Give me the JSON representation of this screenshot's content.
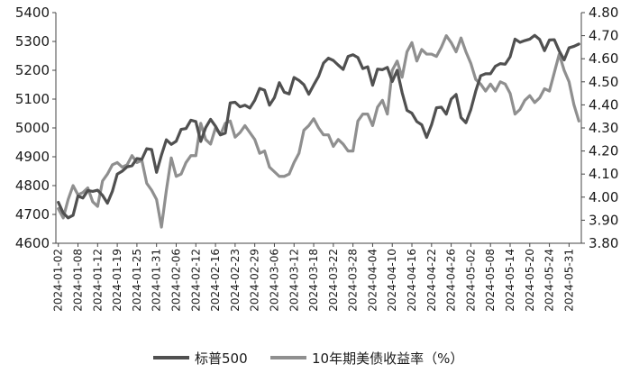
{
  "chart_data": {
    "type": "line",
    "x": [
      "2024-01-02",
      "2024-01-03",
      "2024-01-04",
      "2024-01-05",
      "2024-01-08",
      "2024-01-09",
      "2024-01-10",
      "2024-01-11",
      "2024-01-12",
      "2024-01-16",
      "2024-01-17",
      "2024-01-18",
      "2024-01-19",
      "2024-01-22",
      "2024-01-23",
      "2024-01-24",
      "2024-01-25",
      "2024-01-26",
      "2024-01-29",
      "2024-01-30",
      "2024-01-31",
      "2024-02-01",
      "2024-02-02",
      "2024-02-05",
      "2024-02-06",
      "2024-02-07",
      "2024-02-08",
      "2024-02-09",
      "2024-02-12",
      "2024-02-13",
      "2024-02-14",
      "2024-02-15",
      "2024-02-16",
      "2024-02-20",
      "2024-02-21",
      "2024-02-22",
      "2024-02-23",
      "2024-02-26",
      "2024-02-27",
      "2024-02-28",
      "2024-02-29",
      "2024-03-01",
      "2024-03-04",
      "2024-03-05",
      "2024-03-06",
      "2024-03-07",
      "2024-03-08",
      "2024-03-11",
      "2024-03-12",
      "2024-03-13",
      "2024-03-14",
      "2024-03-15",
      "2024-03-18",
      "2024-03-19",
      "2024-03-20",
      "2024-03-21",
      "2024-03-22",
      "2024-03-25",
      "2024-03-26",
      "2024-03-27",
      "2024-03-28",
      "2024-04-01",
      "2024-04-02",
      "2024-04-03",
      "2024-04-04",
      "2024-04-05",
      "2024-04-08",
      "2024-04-09",
      "2024-04-10",
      "2024-04-11",
      "2024-04-12",
      "2024-04-15",
      "2024-04-16",
      "2024-04-17",
      "2024-04-18",
      "2024-04-19",
      "2024-04-22",
      "2024-04-23",
      "2024-04-24",
      "2024-04-25",
      "2024-04-26",
      "2024-04-29",
      "2024-04-30",
      "2024-05-01",
      "2024-05-02",
      "2024-05-03",
      "2024-05-06",
      "2024-05-07",
      "2024-05-08",
      "2024-05-09",
      "2024-05-10",
      "2024-05-13",
      "2024-05-14",
      "2024-05-15",
      "2024-05-16",
      "2024-05-17",
      "2024-05-20",
      "2024-05-21",
      "2024-05-22",
      "2024-05-23",
      "2024-05-24",
      "2024-05-28",
      "2024-05-29",
      "2024-05-30",
      "2024-05-31",
      "2024-06-03",
      "2024-06-04"
    ],
    "x_tick_labels": [
      "2024-01-02",
      "2024-01-08",
      "2024-01-12",
      "2024-01-19",
      "2024-01-25",
      "2024-01-31",
      "2024-02-06",
      "2024-02-12",
      "2024-02-16",
      "2024-02-23",
      "2024-02-29",
      "2024-03-06",
      "2024-03-12",
      "2024-03-18",
      "2024-03-22",
      "2024-03-28",
      "2024-04-04",
      "2024-04-10",
      "2024-04-16",
      "2024-04-22",
      "2024-04-26",
      "2024-05-02",
      "2024-05-08",
      "2024-05-14",
      "2024-05-20",
      "2024-05-24",
      "2024-05-31"
    ],
    "series": [
      {
        "name": "标普500",
        "axis": "left",
        "color": "#505050",
        "values": [
          4742,
          4705,
          4688,
          4697,
          4764,
          4757,
          4783,
          4780,
          4784,
          4766,
          4739,
          4780,
          4840,
          4850,
          4865,
          4869,
          4894,
          4891,
          4928,
          4925,
          4846,
          4906,
          4959,
          4943,
          4954,
          4995,
          4998,
          5027,
          5022,
          4953,
          5001,
          5030,
          5006,
          4976,
          4982,
          5087,
          5089,
          5073,
          5079,
          5069,
          5096,
          5137,
          5131,
          5079,
          5105,
          5157,
          5124,
          5118,
          5175,
          5165,
          5150,
          5117,
          5149,
          5179,
          5225,
          5242,
          5234,
          5218,
          5203,
          5248,
          5254,
          5244,
          5206,
          5212,
          5148,
          5204,
          5202,
          5210,
          5161,
          5200,
          5123,
          5061,
          5051,
          5022,
          5011,
          4967,
          5011,
          5070,
          5072,
          5048,
          5100,
          5116,
          5036,
          5018,
          5064,
          5128,
          5181,
          5188,
          5188,
          5214,
          5223,
          5221,
          5247,
          5308,
          5297,
          5303,
          5308,
          5321,
          5307,
          5268,
          5305,
          5306,
          5267,
          5236,
          5278,
          5283,
          5291
        ]
      },
      {
        "name": "10年期美债收益率（%）",
        "axis": "right",
        "color": "#8f8f8f",
        "values": [
          3.95,
          3.91,
          3.99,
          4.05,
          4.01,
          4.02,
          4.04,
          3.98,
          3.96,
          4.07,
          4.1,
          4.14,
          4.15,
          4.13,
          4.14,
          4.18,
          4.15,
          4.16,
          4.06,
          4.03,
          3.99,
          3.87,
          4.03,
          4.17,
          4.09,
          4.1,
          4.15,
          4.18,
          4.18,
          4.32,
          4.25,
          4.23,
          4.3,
          4.27,
          4.32,
          4.33,
          4.26,
          4.28,
          4.31,
          4.28,
          4.25,
          4.19,
          4.2,
          4.13,
          4.11,
          4.09,
          4.09,
          4.1,
          4.15,
          4.19,
          4.29,
          4.31,
          4.34,
          4.3,
          4.27,
          4.27,
          4.22,
          4.25,
          4.23,
          4.2,
          4.2,
          4.33,
          4.36,
          4.36,
          4.31,
          4.39,
          4.42,
          4.36,
          4.55,
          4.59,
          4.52,
          4.63,
          4.67,
          4.59,
          4.64,
          4.62,
          4.62,
          4.61,
          4.65,
          4.7,
          4.67,
          4.63,
          4.69,
          4.63,
          4.58,
          4.51,
          4.49,
          4.46,
          4.49,
          4.46,
          4.5,
          4.49,
          4.45,
          4.36,
          4.38,
          4.42,
          4.44,
          4.41,
          4.43,
          4.47,
          4.46,
          4.54,
          4.62,
          4.55,
          4.5,
          4.4,
          4.33
        ]
      }
    ],
    "y_left": {
      "min": 4600,
      "max": 5400,
      "ticks": [
        4600,
        4700,
        4800,
        4900,
        5000,
        5100,
        5200,
        5300,
        5400
      ]
    },
    "y_right": {
      "min": 3.8,
      "max": 4.8,
      "ticks": [
        "3.80",
        "3.90",
        "4.00",
        "4.10",
        "4.20",
        "4.30",
        "4.40",
        "4.50",
        "4.60",
        "4.70",
        "4.80"
      ]
    },
    "legend_position": "bottom",
    "grid": false
  }
}
